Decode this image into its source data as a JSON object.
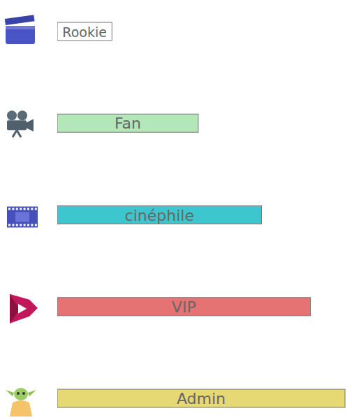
{
  "chart_data": {
    "type": "bar",
    "orientation": "horizontal",
    "categories": [
      "Rookie",
      "Fan",
      "cinéphile",
      "VIP",
      "Admin"
    ],
    "values": [
      19,
      49,
      71,
      88,
      100
    ],
    "colors": [
      "#ffffff",
      "#b3e6b8",
      "#3ec6cf",
      "#e57373",
      "#e6d873"
    ],
    "xlim": [
      0,
      100
    ],
    "tick_labels": false,
    "grid": false,
    "data_labels": false
  }
}
